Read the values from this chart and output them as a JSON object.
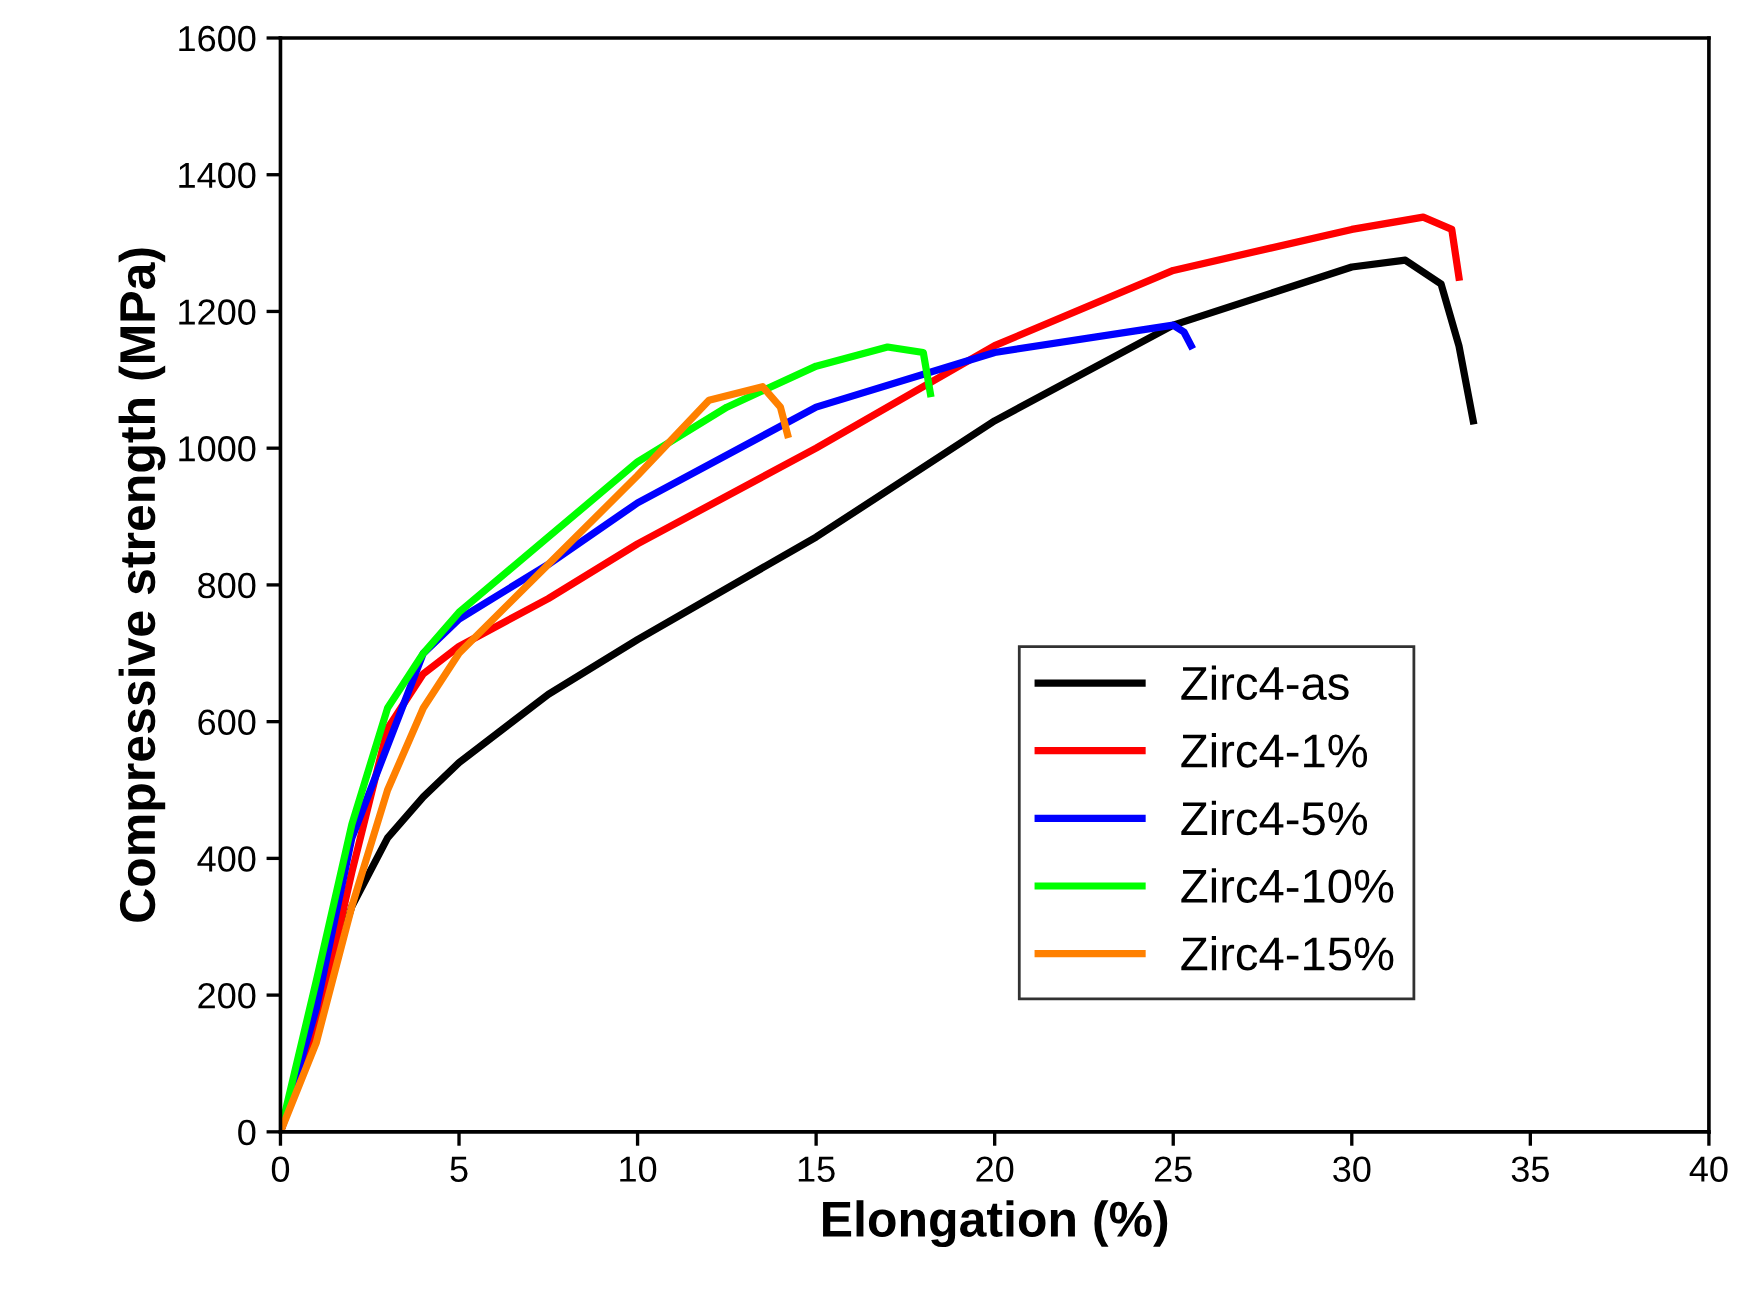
{
  "chart_data": {
    "type": "line",
    "xlabel": "Elongation (%)",
    "ylabel": "Compressive strength (MPa)",
    "xlim": [
      0,
      40
    ],
    "ylim": [
      0,
      1600
    ],
    "xticks": [
      0,
      5,
      10,
      15,
      20,
      25,
      30,
      35,
      40
    ],
    "yticks": [
      0,
      200,
      400,
      600,
      800,
      1000,
      1200,
      1400,
      1600
    ],
    "grid": false,
    "legend": "lower right",
    "marker": "none",
    "line_style": "solid",
    "series": [
      {
        "name": "Zirc4-as",
        "color": "#000000",
        "x": [
          0,
          2,
          3,
          4,
          5,
          7.5,
          10,
          15,
          20,
          25,
          30,
          31.5,
          32.5,
          33,
          33.4
        ],
        "values": [
          0,
          330,
          430,
          490,
          540,
          640,
          720,
          870,
          1040,
          1180,
          1265,
          1275,
          1240,
          1150,
          1040
        ]
      },
      {
        "name": "Zirc4-1%",
        "color": "#ff0000",
        "x": [
          0,
          1,
          2,
          3,
          4,
          5,
          7.5,
          10,
          15,
          20,
          25,
          30,
          32,
          32.8,
          33
        ],
        "values": [
          0,
          150,
          380,
          590,
          670,
          710,
          780,
          860,
          1000,
          1150,
          1260,
          1320,
          1338,
          1320,
          1250
        ]
      },
      {
        "name": "Zirc4-5%",
        "color": "#0000ff",
        "x": [
          0,
          1,
          2,
          4,
          5,
          7.5,
          10,
          15,
          20,
          25,
          25.3,
          25.5
        ],
        "values": [
          0,
          180,
          430,
          700,
          750,
          830,
          920,
          1060,
          1140,
          1180,
          1170,
          1150
        ]
      },
      {
        "name": "Zirc4-10%",
        "color": "#00ff00",
        "x": [
          0,
          1,
          2,
          3,
          4,
          5,
          7.5,
          10,
          12.5,
          15,
          17,
          18,
          18.2
        ],
        "values": [
          0,
          220,
          450,
          620,
          700,
          760,
          870,
          980,
          1060,
          1120,
          1148,
          1140,
          1080
        ]
      },
      {
        "name": "Zirc4-15%",
        "color": "#ff8000",
        "x": [
          0,
          1,
          2,
          3,
          4,
          5,
          7.5,
          10,
          12,
          13.5,
          14,
          14.2
        ],
        "values": [
          0,
          130,
          330,
          500,
          620,
          700,
          830,
          960,
          1070,
          1090,
          1060,
          1020
        ]
      }
    ]
  }
}
